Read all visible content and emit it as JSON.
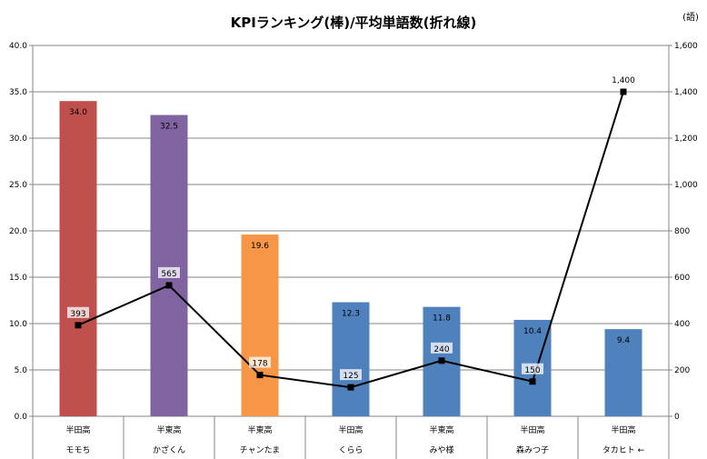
{
  "chart_data": {
    "type": "bar",
    "title": "KPIランキング(棒)/平均単語数(折れ線)",
    "right_unit": "(語)",
    "categories": [
      {
        "school": "半田高",
        "name": "モモち"
      },
      {
        "school": "半東高",
        "name": "かざくん"
      },
      {
        "school": "半東高",
        "name": "チャンたま"
      },
      {
        "school": "半田高",
        "name": "くらら"
      },
      {
        "school": "半東高",
        "name": "みや様"
      },
      {
        "school": "半田高",
        "name": "森みつ子"
      },
      {
        "school": "半田高",
        "name": "タカヒト ←"
      }
    ],
    "bar_values": [
      34.0,
      32.5,
      19.6,
      12.3,
      11.8,
      10.4,
      9.4
    ],
    "bar_labels": [
      "34.0",
      "32.5",
      "19.6",
      "12.3",
      "11.8",
      "10.4",
      "9.4"
    ],
    "bar_colors": [
      "#C0504D",
      "#8064A2",
      "#F79646",
      "#4F81BD",
      "#4F81BD",
      "#4F81BD",
      "#4F81BD"
    ],
    "line_values": [
      393,
      565,
      178,
      125,
      240,
      150,
      1400
    ],
    "line_labels": [
      "393",
      "565",
      "178",
      "125",
      "240",
      "150",
      "1,400"
    ],
    "line_color": "#000000",
    "y_left": {
      "range": [
        0,
        40
      ],
      "ticks": [
        "0.0",
        "5.0",
        "10.0",
        "15.0",
        "20.0",
        "25.0",
        "30.0",
        "35.0",
        "40.0"
      ]
    },
    "y_right": {
      "range": [
        0,
        1600
      ],
      "ticks": [
        "0",
        "200",
        "400",
        "600",
        "800",
        "1,000",
        "1,200",
        "1,400",
        "1,600"
      ]
    },
    "grid": true,
    "legend": "none"
  }
}
